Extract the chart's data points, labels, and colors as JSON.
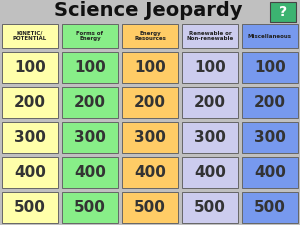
{
  "title": "Science Jeopardy",
  "title_fontsize": 14,
  "question_mark": "?",
  "question_mark_bg": "#3cb371",
  "background_color": "#c0c0c0",
  "columns": [
    {
      "label": "KINETIC/\nPOTENTIAL",
      "color": "#ffffaa"
    },
    {
      "label": "Forms of\nEnergy",
      "color": "#88ee88"
    },
    {
      "label": "Energy\nResources",
      "color": "#ffcc66"
    },
    {
      "label": "Renewable or\nNon-renewable",
      "color": "#ccccee"
    },
    {
      "label": "Miscellaneous",
      "color": "#7799ee"
    }
  ],
  "rows": [
    100,
    200,
    300,
    400,
    500
  ],
  "cell_colors": [
    [
      "#ffffaa",
      "#88ee88",
      "#ffcc66",
      "#ccccee",
      "#7799ee"
    ],
    [
      "#ffffaa",
      "#88ee88",
      "#ffcc66",
      "#ccccee",
      "#7799ee"
    ],
    [
      "#ffffaa",
      "#88ee88",
      "#ffcc66",
      "#ccccee",
      "#7799ee"
    ],
    [
      "#ffffaa",
      "#88ee88",
      "#ffcc66",
      "#ccccee",
      "#7799ee"
    ],
    [
      "#ffffaa",
      "#88ee88",
      "#ffcc66",
      "#ccccee",
      "#7799ee"
    ]
  ],
  "border_color": "#666666",
  "number_color": "#333333",
  "header_text_color": "#222222",
  "title_color": "#111111"
}
